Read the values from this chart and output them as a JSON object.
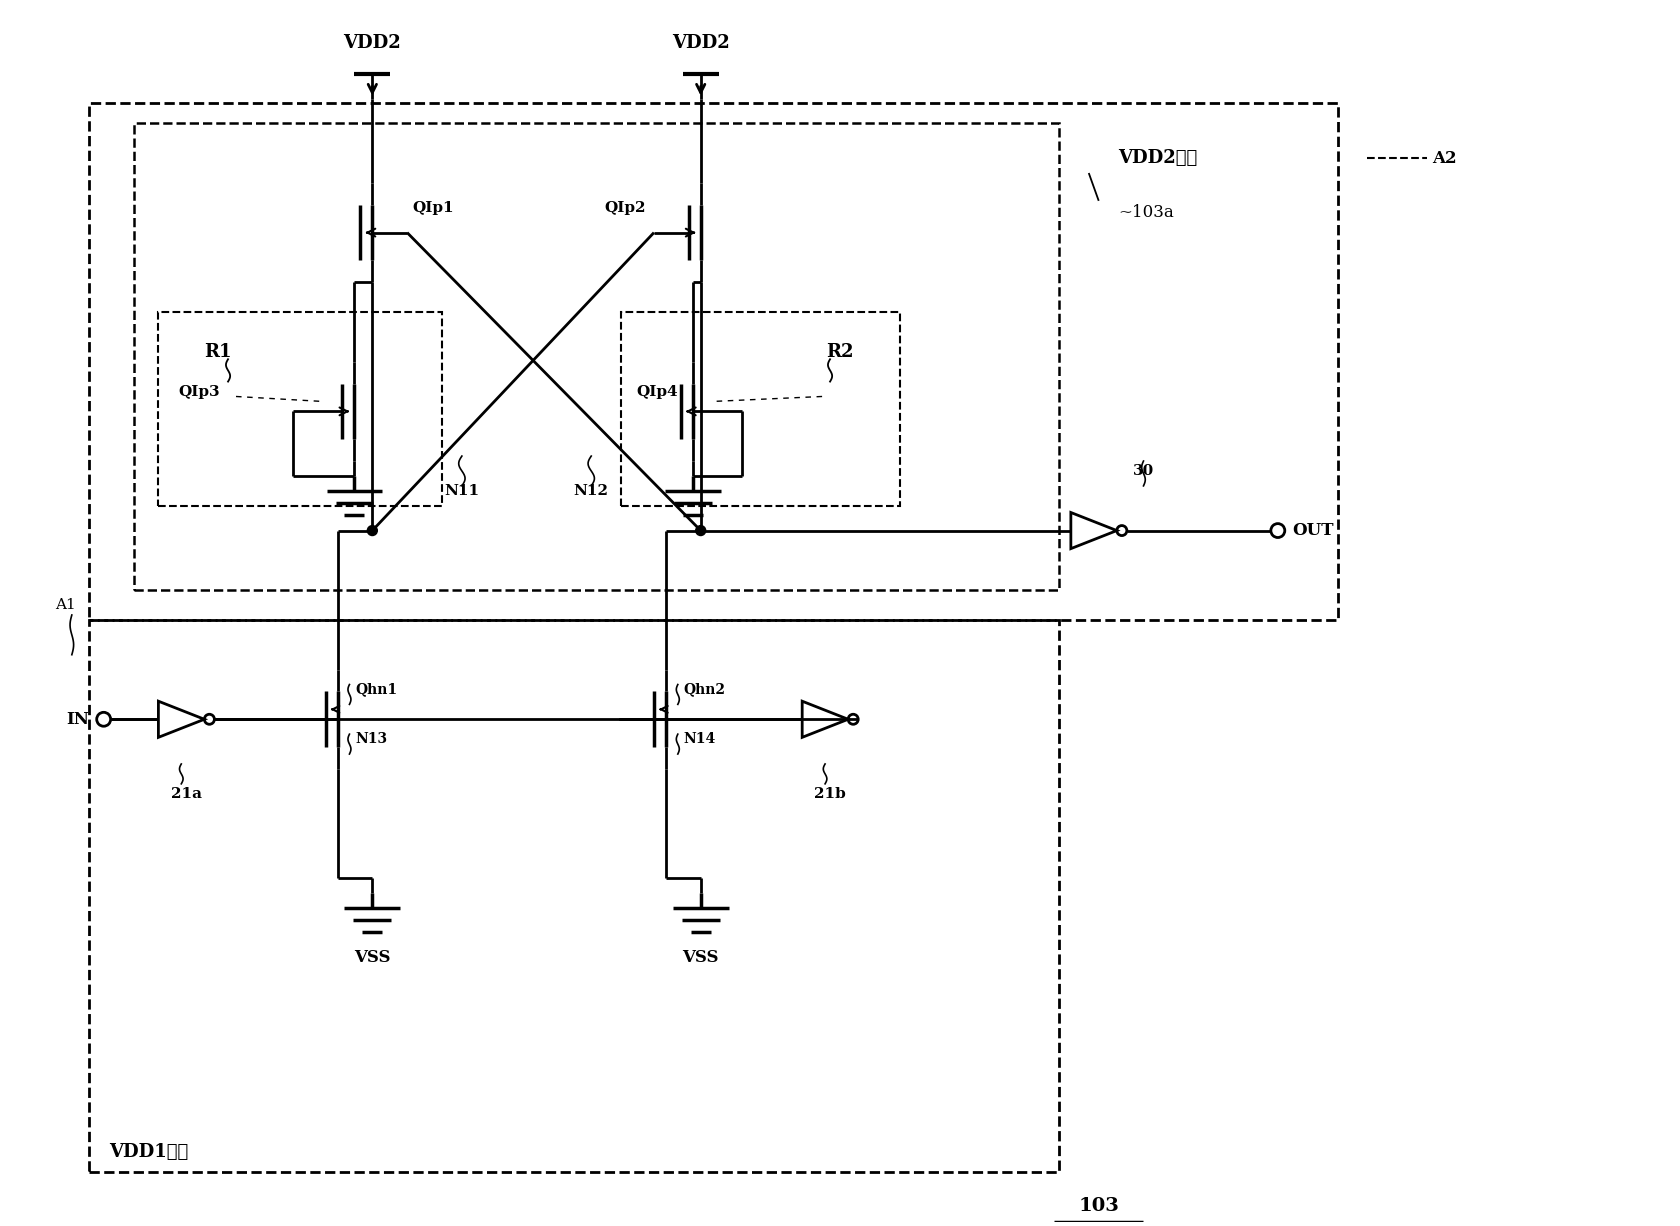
{
  "background": "#ffffff",
  "figsize": [
    16.81,
    12.26
  ],
  "dpi": 100,
  "lw": 2.0,
  "labels": {
    "VDD2_left": "VDD2",
    "VDD2_right": "VDD2",
    "VSS_left": "VSS",
    "VSS_right": "VSS",
    "R1": "R1",
    "R2": "R2",
    "QIp1": "QIp1",
    "QIp2": "QIp2",
    "QIp3": "QIp3",
    "QIp4": "QIp4",
    "N11": "N11",
    "N12": "N12",
    "N13": "N13",
    "N14": "N14",
    "Qhn1": "Qhn1",
    "Qhn2": "Qhn2",
    "IN": "IN",
    "OUT": "OUT",
    "21a": "21a",
    "21b": "21b",
    "30": "30",
    "A1": "A1",
    "A2": "A2",
    "103a": "~103a",
    "103": "103",
    "VDD2sys": "VDD2系统",
    "VDD1sys": "VDD1系统"
  }
}
